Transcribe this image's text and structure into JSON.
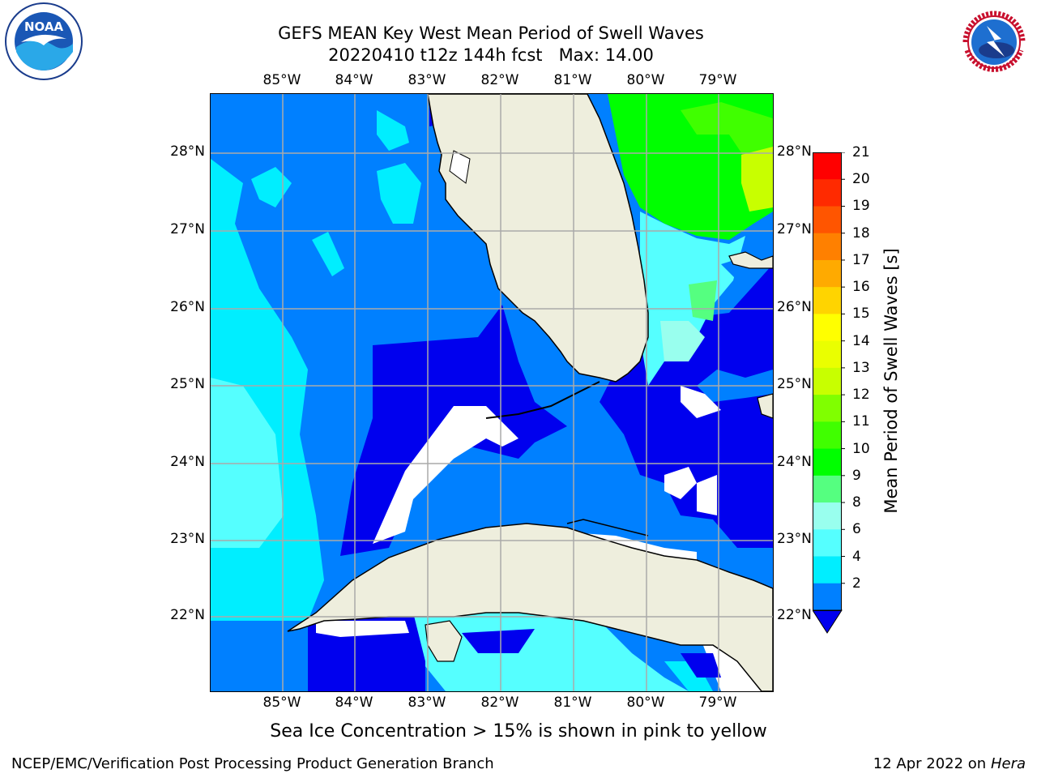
{
  "title": {
    "line1": "GEFS MEAN Key West Mean Period of Swell Waves",
    "line2": "20220410 t12z 144h fcst",
    "max_label": "Max: 14.00"
  },
  "map": {
    "lon_ticks": [
      "85°W",
      "84°W",
      "83°W",
      "82°W",
      "81°W",
      "80°W",
      "79°W"
    ],
    "lat_ticks": [
      "28°N",
      "27°N",
      "26°N",
      "25°N",
      "24°N",
      "23°N",
      "22°N"
    ]
  },
  "colorbar": {
    "label": "Mean Period of Swell Waves [s]",
    "ticks": [
      "21",
      "20",
      "19",
      "18",
      "17",
      "16",
      "15",
      "14",
      "13",
      "12",
      "11",
      "10",
      "9",
      "8",
      "6",
      "4",
      "2"
    ],
    "colors": [
      "#ff0000",
      "#ff2a00",
      "#ff5500",
      "#ff8000",
      "#ffaa00",
      "#ffd400",
      "#ffff00",
      "#eaff00",
      "#c8ff00",
      "#80ff00",
      "#40ff00",
      "#00ff00",
      "#55ff80",
      "#99ffee",
      "#55ffff",
      "#00eeff",
      "#0080ff"
    ],
    "under_color": "#0000ee"
  },
  "caption": "Sea Ice Concentration > 15% is shown in pink to yellow",
  "footer": {
    "left": "NCEP/EMC/Verification Post Processing Product Generation Branch",
    "date": "12 Apr 2022 on",
    "host": "Hera"
  },
  "logos": {
    "noaa_text": "NOAA",
    "nws_text": "NATIONAL WEATHER SERVICE"
  }
}
